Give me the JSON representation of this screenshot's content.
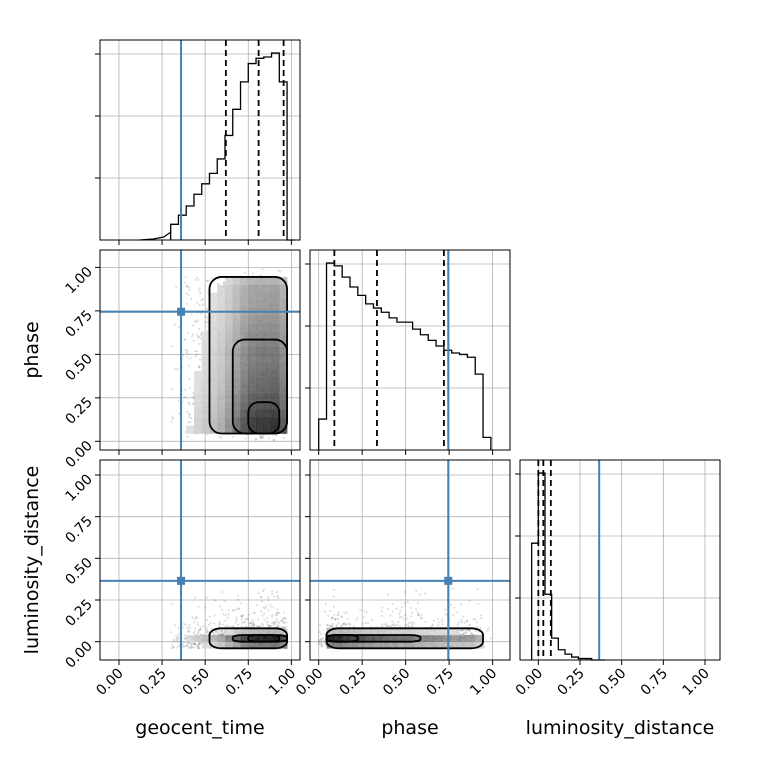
{
  "chart_data": {
    "type": "corner",
    "parameters": [
      "geocent_time",
      "phase",
      "luminosity_distance"
    ],
    "tick_values": [
      0.0,
      0.25,
      0.5,
      0.75,
      1.0
    ],
    "tick_labels": [
      "0.00",
      "0.25",
      "0.50",
      "0.75",
      "1.00"
    ],
    "injection": {
      "geocent_time": 0.36,
      "phase": 0.745,
      "luminosity_distance": 0.365
    },
    "injection_color": "#4682b4",
    "quantiles": {
      "geocent_time": [
        0.62,
        0.81,
        0.955
      ],
      "phase": [
        0.09,
        0.335,
        0.72
      ],
      "luminosity_distance": [
        0.0,
        0.03,
        0.075
      ]
    },
    "ranges": {
      "geocent_time": [
        -0.11,
        1.05
      ],
      "phase": [
        -0.05,
        1.1
      ],
      "luminosity_distance": [
        -0.11,
        1.09
      ]
    },
    "histograms": {
      "geocent_time": {
        "edges": [
          0.3,
          0.345,
          0.39,
          0.435,
          0.48,
          0.525,
          0.57,
          0.615,
          0.66,
          0.705,
          0.75,
          0.795,
          0.84,
          0.885,
          0.93,
          0.975,
          1.02
        ],
        "counts": [
          12,
          19,
          26,
          35,
          43,
          51,
          62,
          80,
          100,
          121,
          135,
          139,
          140,
          143,
          121,
          0
        ]
      },
      "phase": {
        "edges": [
          0.0,
          0.045,
          0.09,
          0.135,
          0.18,
          0.225,
          0.27,
          0.315,
          0.36,
          0.405,
          0.45,
          0.495,
          0.54,
          0.585,
          0.63,
          0.675,
          0.72,
          0.765,
          0.81,
          0.855,
          0.9,
          0.945,
          0.99
        ],
        "counts": [
          22,
          133,
          131,
          123,
          116,
          110,
          104,
          101,
          98,
          94,
          91,
          91,
          86,
          82,
          78,
          74,
          71,
          69,
          68,
          66,
          54,
          9
        ]
      },
      "luminosity_distance": {
        "edges": [
          -0.04,
          0.0,
          0.04,
          0.08,
          0.12,
          0.16,
          0.2,
          0.24,
          0.28,
          0.32,
          0.36,
          0.4
        ],
        "counts": [
          80,
          128,
          45,
          15,
          7,
          4,
          2,
          1,
          1,
          0,
          0
        ]
      }
    },
    "grid": true
  }
}
